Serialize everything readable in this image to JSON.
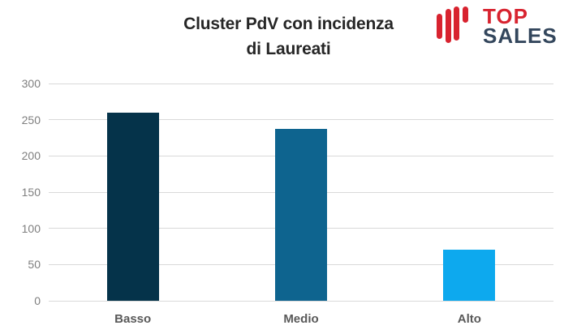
{
  "header": {
    "title_line1": "Cluster PdV con incidenza",
    "title_line2": "di Laureati",
    "logo": {
      "word_top": "TOP",
      "word_sales": "SALES",
      "icon": "bar-wave-icon",
      "red": "#d8232f",
      "dark": "#33465c"
    }
  },
  "chart_data": {
    "type": "bar",
    "title": "Cluster PdV con incidenza di Laureati",
    "categories": [
      "Basso",
      "Medio",
      "Alto"
    ],
    "values": [
      260,
      237,
      70
    ],
    "bar_colors": [
      "#05334a",
      "#0e648f",
      "#0da9ee"
    ],
    "xlabel": "",
    "ylabel": "",
    "ylim": [
      0,
      300
    ],
    "yticks": [
      0,
      50,
      100,
      150,
      200,
      250,
      300
    ],
    "grid": true,
    "gridline_color": "#d9d9d9",
    "ytick_color": "#7f7f7f",
    "xtick_color": "#595959",
    "legend": "none",
    "background": "#ffffff"
  }
}
